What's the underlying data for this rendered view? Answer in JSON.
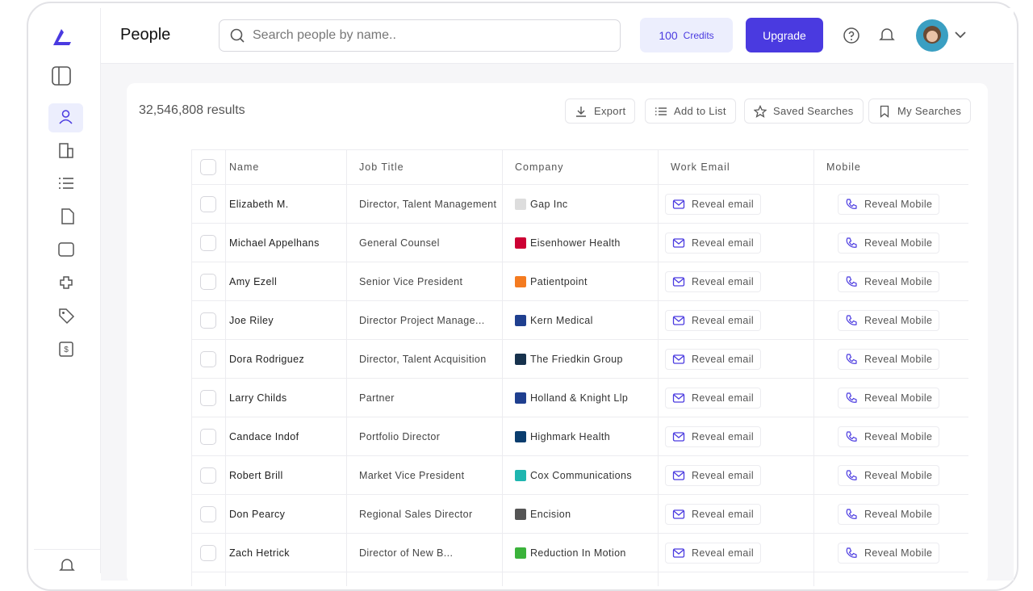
{
  "header": {
    "title": "People",
    "search_placeholder": "Search people by name..",
    "credits_count": "100",
    "credits_label": "Credits",
    "upgrade": "Upgrade"
  },
  "toolbar": {
    "results": "32,546,808 results",
    "export": "Export",
    "add_to_list": "Add to List",
    "saved_searches": "Saved Searches",
    "my_searches": "My Searches"
  },
  "table": {
    "columns": [
      "Name",
      "Job Title",
      "Company",
      "Work Email",
      "Mobile"
    ],
    "rows": [
      [
        "Elizabeth M.",
        "Director, Talent Management",
        "Gap Inc",
        "Reveal email",
        "Reveal Mobile"
      ],
      [
        "Michael Appelhans",
        "General Counsel",
        "Eisenhower Health",
        "Reveal email",
        "Reveal Mobile"
      ],
      [
        "Amy Ezell",
        "Senior Vice President",
        "Patientpoint",
        "Reveal email",
        "Reveal Mobile"
      ],
      [
        "Joe Riley",
        "Director Project Manage...",
        "Kern Medical",
        "Reveal email",
        "Reveal Mobile"
      ],
      [
        "Dora Rodriguez",
        "Director, Talent Acquisition",
        "The Friedkin Group",
        "Reveal email",
        "Reveal Mobile"
      ],
      [
        "Larry Childs",
        "Partner",
        "Holland & Knight Llp",
        "Reveal email",
        "Reveal Mobile"
      ],
      [
        "Candace Indof",
        "Portfolio Director",
        "Highmark Health",
        "Reveal email",
        "Reveal Mobile"
      ],
      [
        "Robert Brill",
        "Market Vice President",
        "Cox Communications",
        "Reveal email",
        "Reveal Mobile"
      ],
      [
        "Don Pearcy",
        "Regional Sales Director",
        "Encision",
        "Reveal email",
        "Reveal Mobile"
      ],
      [
        "Zach Hetrick",
        "Director of New B...",
        "Reduction In Motion",
        "Reveal email",
        "Reveal Mobile"
      ]
    ]
  }
}
